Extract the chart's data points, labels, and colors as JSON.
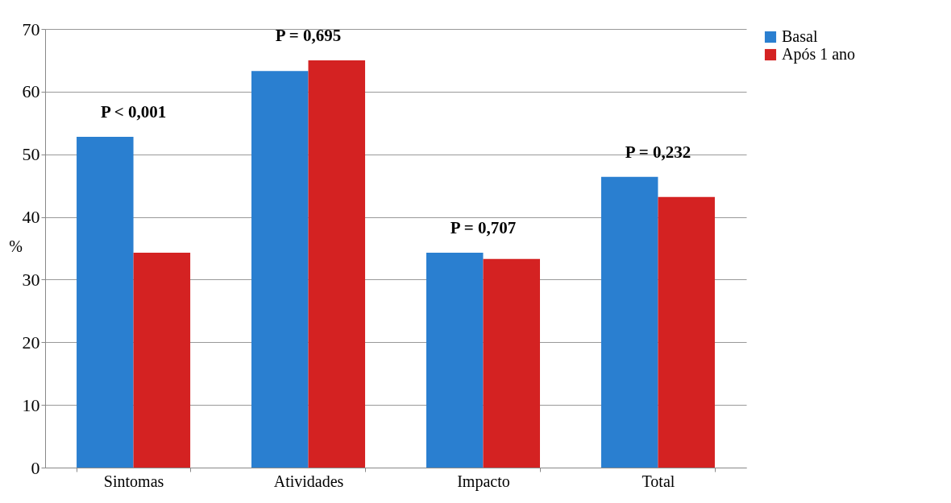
{
  "chart_data": {
    "type": "bar",
    "ylabel": "%",
    "categories": [
      "Sintomas",
      "Atividades",
      "Impacto",
      "Total"
    ],
    "series": [
      {
        "name": "Basal",
        "color": "#2a7fd0",
        "values": [
          52.8,
          63.3,
          34.3,
          46.4
        ]
      },
      {
        "name": "Após 1 ano",
        "color": "#d42222",
        "values": [
          34.3,
          65.0,
          33.3,
          43.2
        ]
      }
    ],
    "ylim": [
      0,
      70
    ],
    "yticks": [
      0,
      10,
      20,
      30,
      40,
      50,
      60,
      70
    ],
    "grid": "y",
    "legend": "right",
    "annotations": [
      "P < 0,001",
      "P = 0,695",
      "P = 0,707",
      "P = 0,232"
    ]
  }
}
